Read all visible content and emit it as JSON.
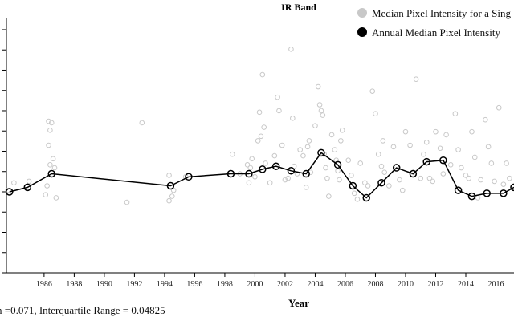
{
  "chart_data": {
    "type": "line",
    "title": "IR Band",
    "xlabel": "Year",
    "ylabel": "",
    "xlim": [
      1983.5,
      2017.2
    ],
    "ylim": [
      0.0,
      0.17
    ],
    "x_ticks": [
      1986,
      1988,
      1990,
      1992,
      1994,
      1996,
      1998,
      2000,
      2002,
      2004,
      2006,
      2008,
      2010,
      2012,
      2014,
      2016
    ],
    "y_ticks_visible_labels": false,
    "legend": {
      "placement": "top-right",
      "entries": [
        {
          "label": "Median Pixel Intensity for a Sing",
          "marker": "open-circle",
          "color": "#c8c8c8",
          "filled": true
        },
        {
          "label": "Annual Median Pixel Intensity",
          "marker": "open-circle",
          "color": "#000000",
          "filled": true
        }
      ]
    },
    "series": [
      {
        "name": "Annual Median Pixel Intensity",
        "color": "#000000",
        "x": [
          1983.7,
          1984.9,
          1986.5,
          1994.4,
          1995.6,
          1998.4,
          1999.6,
          2000.5,
          2001.4,
          2002.4,
          2003.4,
          2004.4,
          2005.5,
          2006.5,
          2007.4,
          2008.4,
          2009.4,
          2010.5,
          2011.4,
          2012.5,
          2013.5,
          2014.4,
          2015.4,
          2016.5,
          2017.2
        ],
        "y": [
          0.054,
          0.057,
          0.066,
          0.058,
          0.064,
          0.066,
          0.066,
          0.069,
          0.071,
          0.068,
          0.066,
          0.08,
          0.072,
          0.058,
          0.05,
          0.06,
          0.07,
          0.066,
          0.074,
          0.075,
          0.055,
          0.051,
          0.053,
          0.053,
          0.057
        ]
      },
      {
        "name": "Median Pixel Intensity for a Sing",
        "color": "#c8c8c8",
        "x": [
          1983.6,
          1984.0,
          1985.0,
          1986.1,
          1986.3,
          1986.4,
          1986.5,
          1986.6,
          1986.3,
          1986.4,
          1986.7,
          1986.2,
          1986.8,
          1991.5,
          1992.5,
          1994.3,
          1994.5,
          1994.6,
          1994.3,
          1995.4,
          1998.5,
          1999.0,
          1999.5,
          1999.6,
          1999.7,
          1999.8,
          2000.0,
          2000.2,
          2000.4,
          2000.6,
          2000.7,
          2000.5,
          2000.3,
          2001.0,
          2001.3,
          2001.5,
          2001.6,
          2001.8,
          2002.0,
          2002.2,
          2002.4,
          2002.5,
          2002.6,
          2002.8,
          2003.0,
          2003.2,
          2003.4,
          2003.5,
          2003.6,
          2003.7,
          2004.0,
          2004.2,
          2004.3,
          2004.4,
          2004.5,
          2004.6,
          2004.7,
          2004.8,
          2004.9,
          2005.1,
          2005.3,
          2005.4,
          2005.5,
          2005.6,
          2005.7,
          2005.8,
          2006.2,
          2006.4,
          2006.6,
          2006.8,
          2007.0,
          2007.3,
          2007.5,
          2007.8,
          2008.0,
          2008.2,
          2008.4,
          2008.5,
          2008.6,
          2008.9,
          2009.2,
          2009.4,
          2009.6,
          2009.8,
          2010.0,
          2010.3,
          2010.5,
          2010.7,
          2011.0,
          2011.2,
          2011.4,
          2011.6,
          2011.8,
          2012.0,
          2012.3,
          2012.5,
          2012.7,
          2013.0,
          2013.3,
          2013.5,
          2013.7,
          2014.0,
          2014.2,
          2014.4,
          2014.6,
          2014.8,
          2015.0,
          2015.3,
          2015.5,
          2015.7,
          2015.9,
          2016.2,
          2016.5,
          2016.7,
          2016.9
        ],
        "y": [
          0.055,
          0.06,
          0.061,
          0.052,
          0.101,
          0.095,
          0.1,
          0.076,
          0.085,
          0.072,
          0.07,
          0.058,
          0.05,
          0.047,
          0.1,
          0.065,
          0.051,
          0.055,
          0.048,
          0.064,
          0.079,
          0.066,
          0.072,
          0.06,
          0.07,
          0.076,
          0.064,
          0.088,
          0.091,
          0.097,
          0.073,
          0.132,
          0.107,
          0.06,
          0.078,
          0.117,
          0.108,
          0.085,
          0.062,
          0.063,
          0.149,
          0.103,
          0.071,
          0.066,
          0.082,
          0.078,
          0.057,
          0.084,
          0.088,
          0.067,
          0.098,
          0.124,
          0.112,
          0.108,
          0.105,
          0.079,
          0.07,
          0.063,
          0.051,
          0.092,
          0.082,
          0.075,
          0.068,
          0.062,
          0.088,
          0.095,
          0.075,
          0.065,
          0.053,
          0.049,
          0.073,
          0.06,
          0.058,
          0.121,
          0.106,
          0.079,
          0.071,
          0.088,
          0.067,
          0.058,
          0.084,
          0.071,
          0.062,
          0.055,
          0.094,
          0.085,
          0.067,
          0.129,
          0.063,
          0.079,
          0.087,
          0.063,
          0.061,
          0.094,
          0.083,
          0.066,
          0.092,
          0.072,
          0.106,
          0.082,
          0.07,
          0.065,
          0.063,
          0.094,
          0.077,
          0.05,
          0.062,
          0.102,
          0.084,
          0.073,
          0.061,
          0.11,
          0.059,
          0.073,
          0.063
        ]
      }
    ]
  },
  "footer_text": "n =0.071, Interquartile Range = 0.04825"
}
